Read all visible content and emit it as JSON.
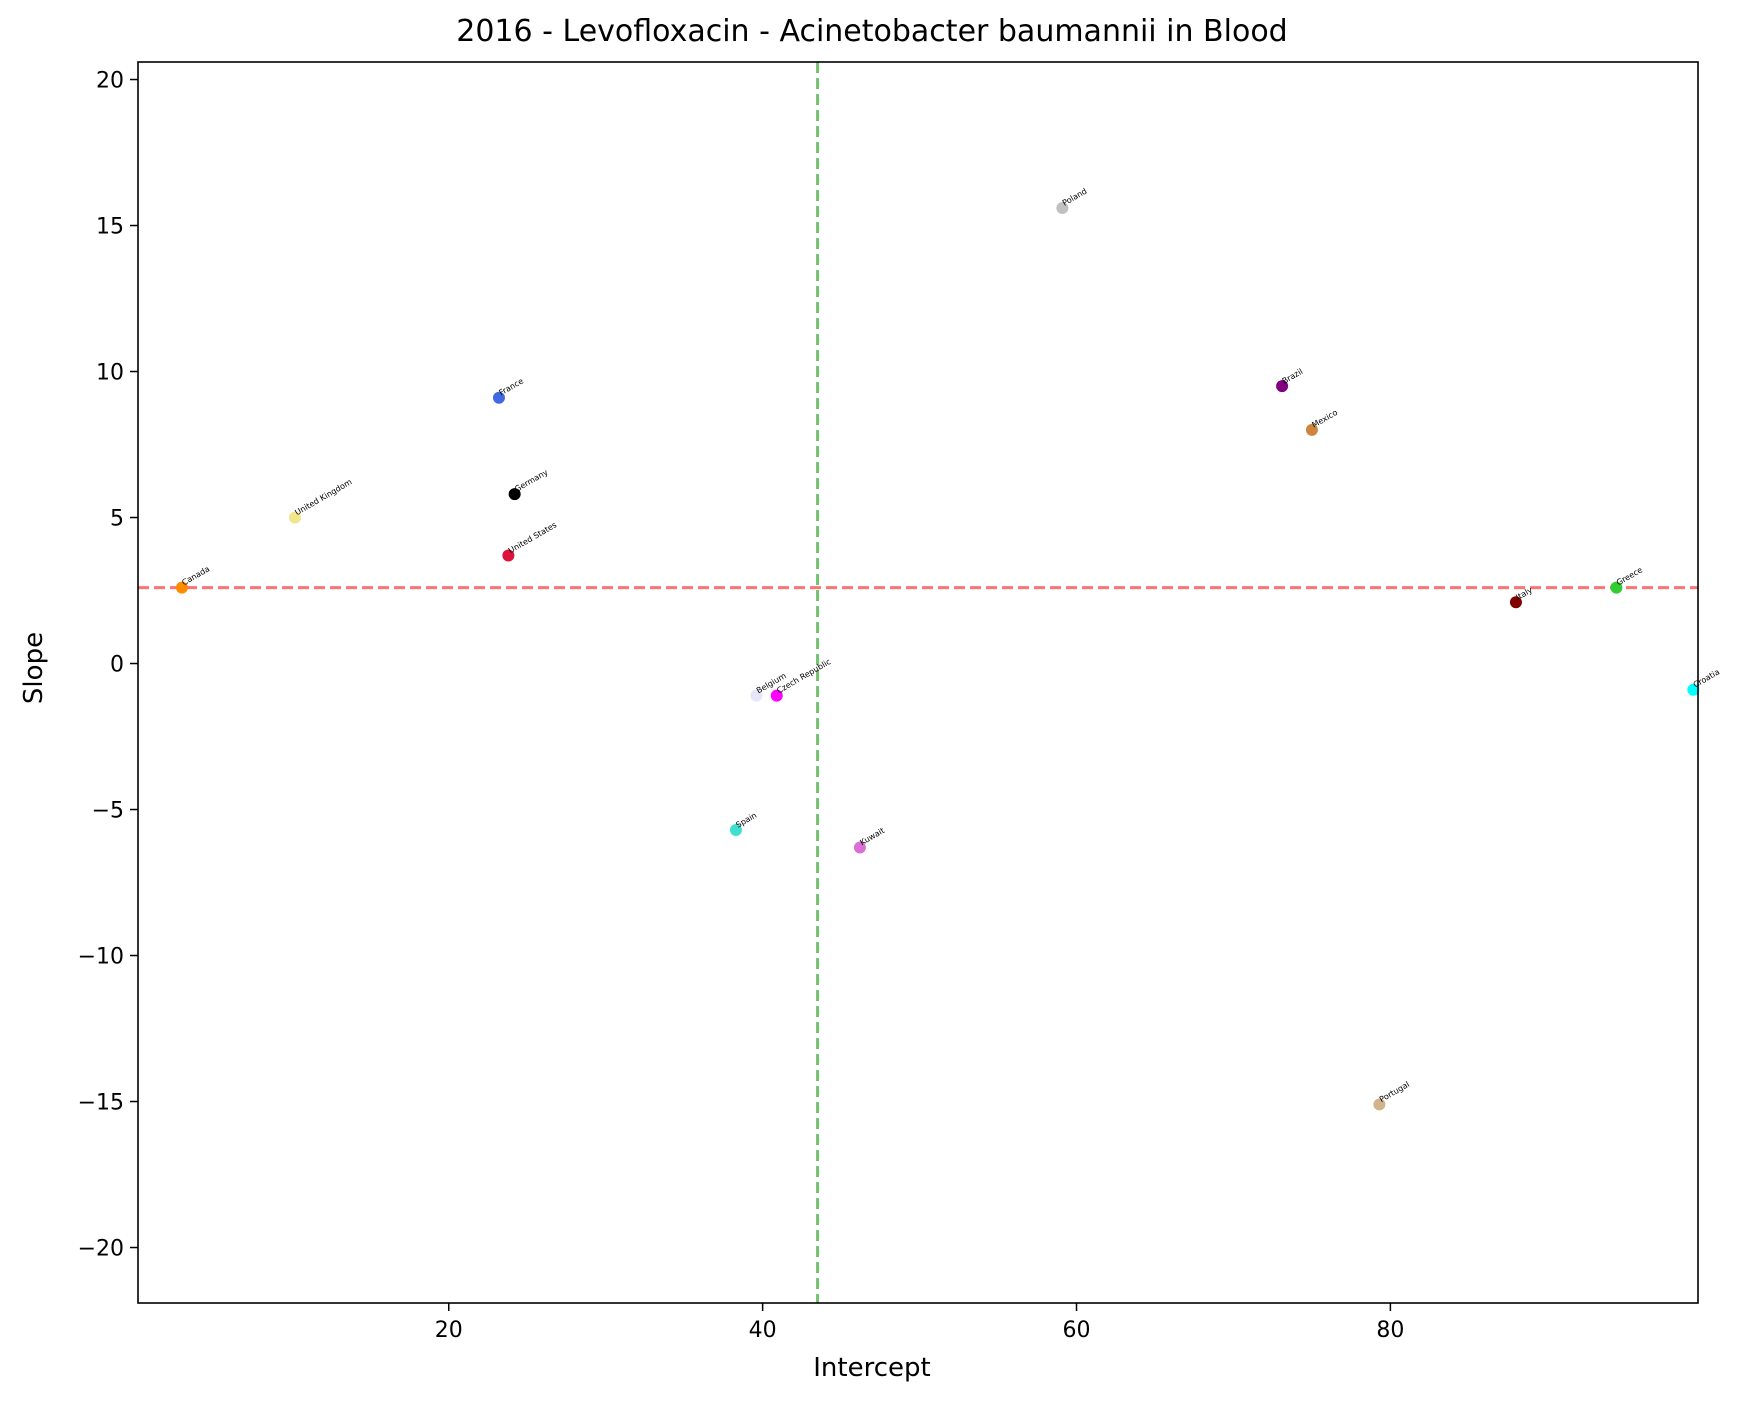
{
  "chart_data": {
    "type": "scatter",
    "title": "2016 - Levofloxacin - Acinetobacter baumannii in Blood",
    "xlabel": "Intercept",
    "ylabel": "Slope",
    "xlim": [
      0.2,
      99.6
    ],
    "ylim": [
      -21.9,
      20.6
    ],
    "xticks": [
      20,
      40,
      60,
      80
    ],
    "yticks": [
      -20,
      -15,
      -10,
      -5,
      0,
      5,
      10,
      15,
      20
    ],
    "grid": false,
    "reference_lines": {
      "vertical_x": 43.5,
      "vertical_color": "#5cb85c",
      "horizontal_y": 2.6,
      "horizontal_color": "#ff5a5a"
    },
    "points": [
      {
        "label": "Canada",
        "x": 3.0,
        "y": 2.6,
        "color": "#ff8c00"
      },
      {
        "label": "United Kingdom",
        "x": 10.2,
        "y": 5.0,
        "color": "#f0e68c"
      },
      {
        "label": "France",
        "x": 23.2,
        "y": 9.1,
        "color": "#4169e1"
      },
      {
        "label": "Germany",
        "x": 24.2,
        "y": 5.8,
        "color": "#000000"
      },
      {
        "label": "United States",
        "x": 23.8,
        "y": 3.7,
        "color": "#dc143c"
      },
      {
        "label": "Belgium",
        "x": 39.6,
        "y": -1.1,
        "color": "#e6e6fa"
      },
      {
        "label": "Czech Republic",
        "x": 40.9,
        "y": -1.1,
        "color": "#ff00ff"
      },
      {
        "label": "Spain",
        "x": 38.3,
        "y": -5.7,
        "color": "#40e0d0"
      },
      {
        "label": "Kuwait",
        "x": 46.2,
        "y": -6.3,
        "color": "#da70d6"
      },
      {
        "label": "Poland",
        "x": 59.1,
        "y": 15.6,
        "color": "#c0c0c0"
      },
      {
        "label": "Brazil",
        "x": 73.1,
        "y": 9.5,
        "color": "#800080"
      },
      {
        "label": "Mexico",
        "x": 75.0,
        "y": 8.0,
        "color": "#cd853f"
      },
      {
        "label": "Italy",
        "x": 88.0,
        "y": 2.1,
        "color": "#800000"
      },
      {
        "label": "Greece",
        "x": 94.4,
        "y": 2.6,
        "color": "#32cd32"
      },
      {
        "label": "Croatia",
        "x": 99.3,
        "y": -0.9,
        "color": "#00ffff"
      },
      {
        "label": "Portugal",
        "x": 79.3,
        "y": -15.1,
        "color": "#d2b48c"
      }
    ]
  }
}
